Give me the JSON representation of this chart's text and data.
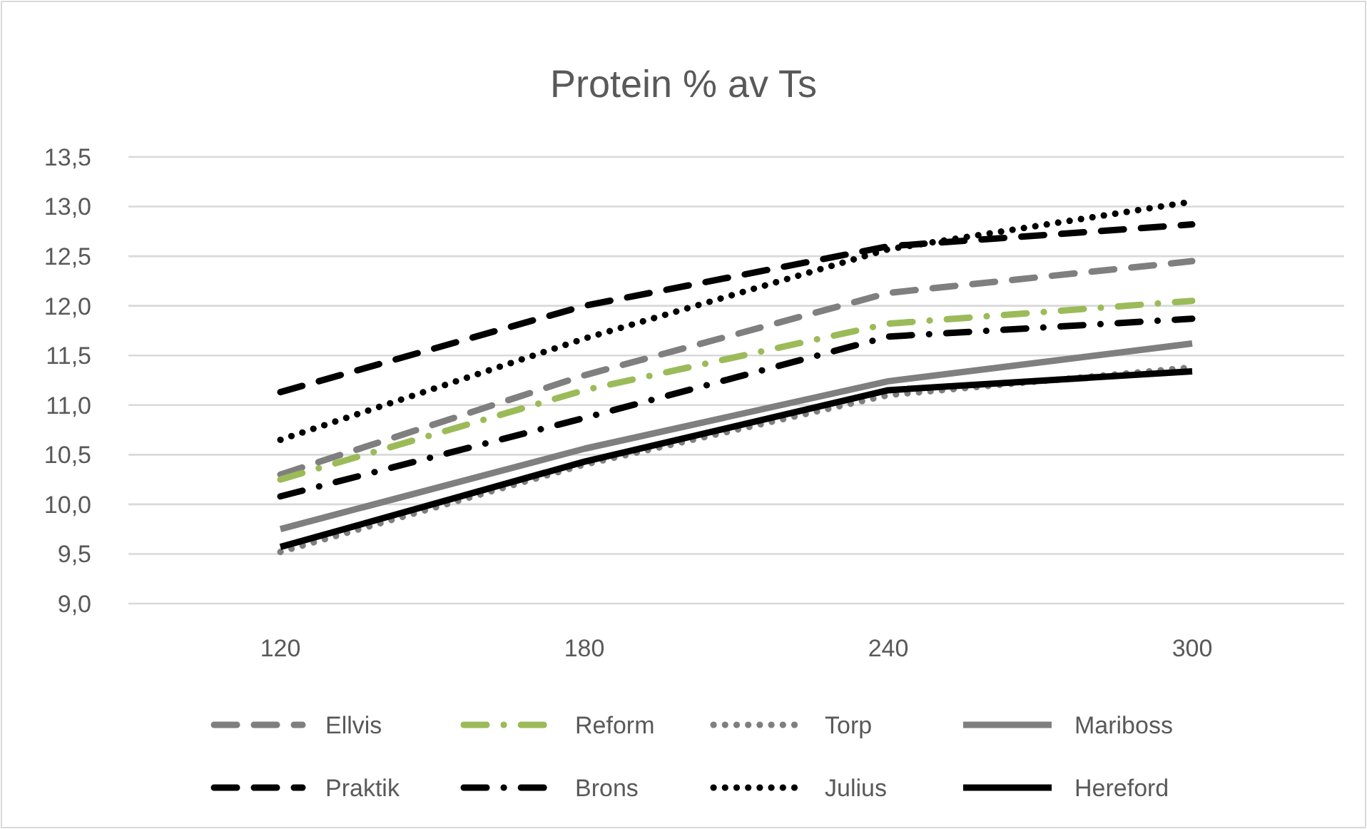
{
  "chart_data": {
    "type": "line",
    "title": "Protein % av Ts",
    "categories": [
      "120",
      "180",
      "240",
      "300"
    ],
    "ylim": [
      9,
      13.5
    ],
    "yticks": [
      {
        "value": 9,
        "label": "9,0"
      },
      {
        "value": 9.5,
        "label": "9,5"
      },
      {
        "value": 10,
        "label": "10,0"
      },
      {
        "value": 10.5,
        "label": "10,5"
      },
      {
        "value": 11,
        "label": "11,0"
      },
      {
        "value": 11.5,
        "label": "11,5"
      },
      {
        "value": 12,
        "label": "12,0"
      },
      {
        "value": 12.5,
        "label": "12,5"
      },
      {
        "value": 13,
        "label": "13,0"
      },
      {
        "value": 13.5,
        "label": "13,5"
      }
    ],
    "grid": "y",
    "legend": "bottom",
    "marker": "none",
    "series": [
      {
        "name": "Ellvis",
        "color": "#7f7f7f",
        "line_style": "dashed",
        "values": [
          10.3,
          11.3,
          12.13,
          12.45
        ]
      },
      {
        "name": "Reform",
        "color": "#9bbb59",
        "line_style": "dashdot",
        "values": [
          10.25,
          11.15,
          11.82,
          12.05
        ]
      },
      {
        "name": "Torp",
        "color": "#7f7f7f",
        "line_style": "dotted",
        "values": [
          9.52,
          10.4,
          11.1,
          11.38
        ]
      },
      {
        "name": "Mariboss",
        "color": "#7f7f7f",
        "line_style": "solid",
        "values": [
          9.75,
          10.56,
          11.24,
          11.62
        ]
      },
      {
        "name": "Praktik",
        "color": "#000000",
        "line_style": "dashed",
        "values": [
          11.13,
          12.0,
          12.6,
          12.82
        ]
      },
      {
        "name": "Brons",
        "color": "#000000",
        "line_style": "dashdot",
        "values": [
          10.08,
          10.87,
          11.69,
          11.87
        ]
      },
      {
        "name": "Julius",
        "color": "#000000",
        "line_style": "dotted",
        "values": [
          10.65,
          11.67,
          12.57,
          13.05
        ]
      },
      {
        "name": "Hereford",
        "color": "#000000",
        "line_style": "solid",
        "values": [
          9.57,
          10.43,
          11.15,
          11.34
        ]
      }
    ]
  }
}
